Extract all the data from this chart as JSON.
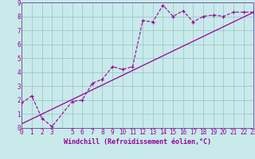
{
  "xlabel": "Windchill (Refroidissement éolien,°C)",
  "xlim": [
    0,
    23
  ],
  "ylim": [
    0,
    9
  ],
  "xticks": [
    0,
    1,
    2,
    3,
    5,
    6,
    7,
    8,
    9,
    10,
    11,
    12,
    13,
    14,
    15,
    16,
    17,
    18,
    19,
    20,
    21,
    22,
    23
  ],
  "yticks": [
    0,
    1,
    2,
    3,
    4,
    5,
    6,
    7,
    8,
    9
  ],
  "bg_color": "#c8eaea",
  "line_color": "#990099",
  "grid_color": "#9bbfbf",
  "data_x": [
    0,
    1,
    2,
    3,
    5,
    6,
    7,
    8,
    9,
    10,
    11,
    12,
    13,
    14,
    15,
    16,
    17,
    18,
    19,
    20,
    21,
    22,
    23
  ],
  "data_y": [
    1.8,
    2.3,
    0.7,
    0.1,
    1.9,
    2.0,
    3.2,
    3.5,
    4.4,
    4.2,
    4.4,
    7.7,
    7.6,
    8.8,
    8.0,
    8.4,
    7.6,
    8.0,
    8.1,
    8.0,
    8.3,
    8.3,
    8.3
  ],
  "trend_x": [
    0,
    23
  ],
  "trend_y": [
    0.3,
    8.3
  ],
  "tick_fontsize": 5.5,
  "label_fontsize": 6.0,
  "spine_color": "#7755aa"
}
